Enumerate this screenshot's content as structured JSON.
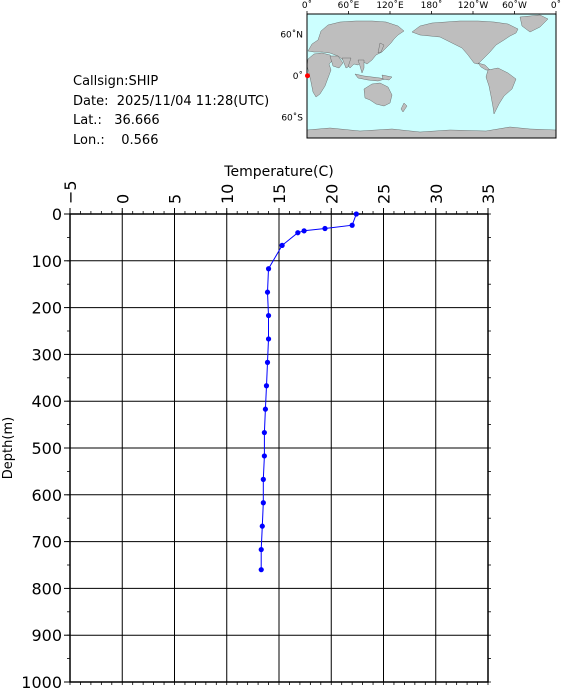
{
  "station": {
    "callsign_text": "Callsign:SHIP",
    "date_text": "Date:  2025/11/04 11:28(UTC)",
    "lat_text": "Lat.:   36.666",
    "lon_text": "Lon.:    0.566"
  },
  "map": {
    "lon_labels": [
      "0˚",
      "60˚E",
      "120˚E",
      "180˚",
      "120˚W",
      "60˚W",
      "0˚"
    ],
    "lat_labels": [
      "60˚N",
      "0˚",
      "60˚S"
    ],
    "ocean_color": "#ccffff",
    "land_color": "#bebebe",
    "marker_color": "#ff0000"
  },
  "chart_data": {
    "type": "line",
    "xlabel": "Temperature(C)",
    "ylabel": "Depth(m)",
    "xlim": [
      -5,
      35
    ],
    "ylim": [
      0,
      1000
    ],
    "x_ticks": [
      "−5",
      "0",
      "5",
      "10",
      "15",
      "20",
      "25",
      "30",
      "35"
    ],
    "y_ticks": [
      "0",
      "100",
      "200",
      "300",
      "400",
      "500",
      "600",
      "700",
      "800",
      "900",
      "1000"
    ],
    "grid": true,
    "series_color": "#0000ff",
    "points": [
      {
        "temp": 22.4,
        "depth": 0
      },
      {
        "temp": 22.0,
        "depth": 24
      },
      {
        "temp": 19.4,
        "depth": 31
      },
      {
        "temp": 17.4,
        "depth": 36
      },
      {
        "temp": 16.8,
        "depth": 40
      },
      {
        "temp": 15.3,
        "depth": 67
      },
      {
        "temp": 14.0,
        "depth": 117
      },
      {
        "temp": 13.9,
        "depth": 167
      },
      {
        "temp": 14.0,
        "depth": 217
      },
      {
        "temp": 14.0,
        "depth": 267
      },
      {
        "temp": 13.9,
        "depth": 317
      },
      {
        "temp": 13.8,
        "depth": 367
      },
      {
        "temp": 13.7,
        "depth": 417
      },
      {
        "temp": 13.6,
        "depth": 467
      },
      {
        "temp": 13.6,
        "depth": 517
      },
      {
        "temp": 13.5,
        "depth": 567
      },
      {
        "temp": 13.5,
        "depth": 617
      },
      {
        "temp": 13.4,
        "depth": 667
      },
      {
        "temp": 13.3,
        "depth": 717
      },
      {
        "temp": 13.3,
        "depth": 760
      }
    ]
  }
}
